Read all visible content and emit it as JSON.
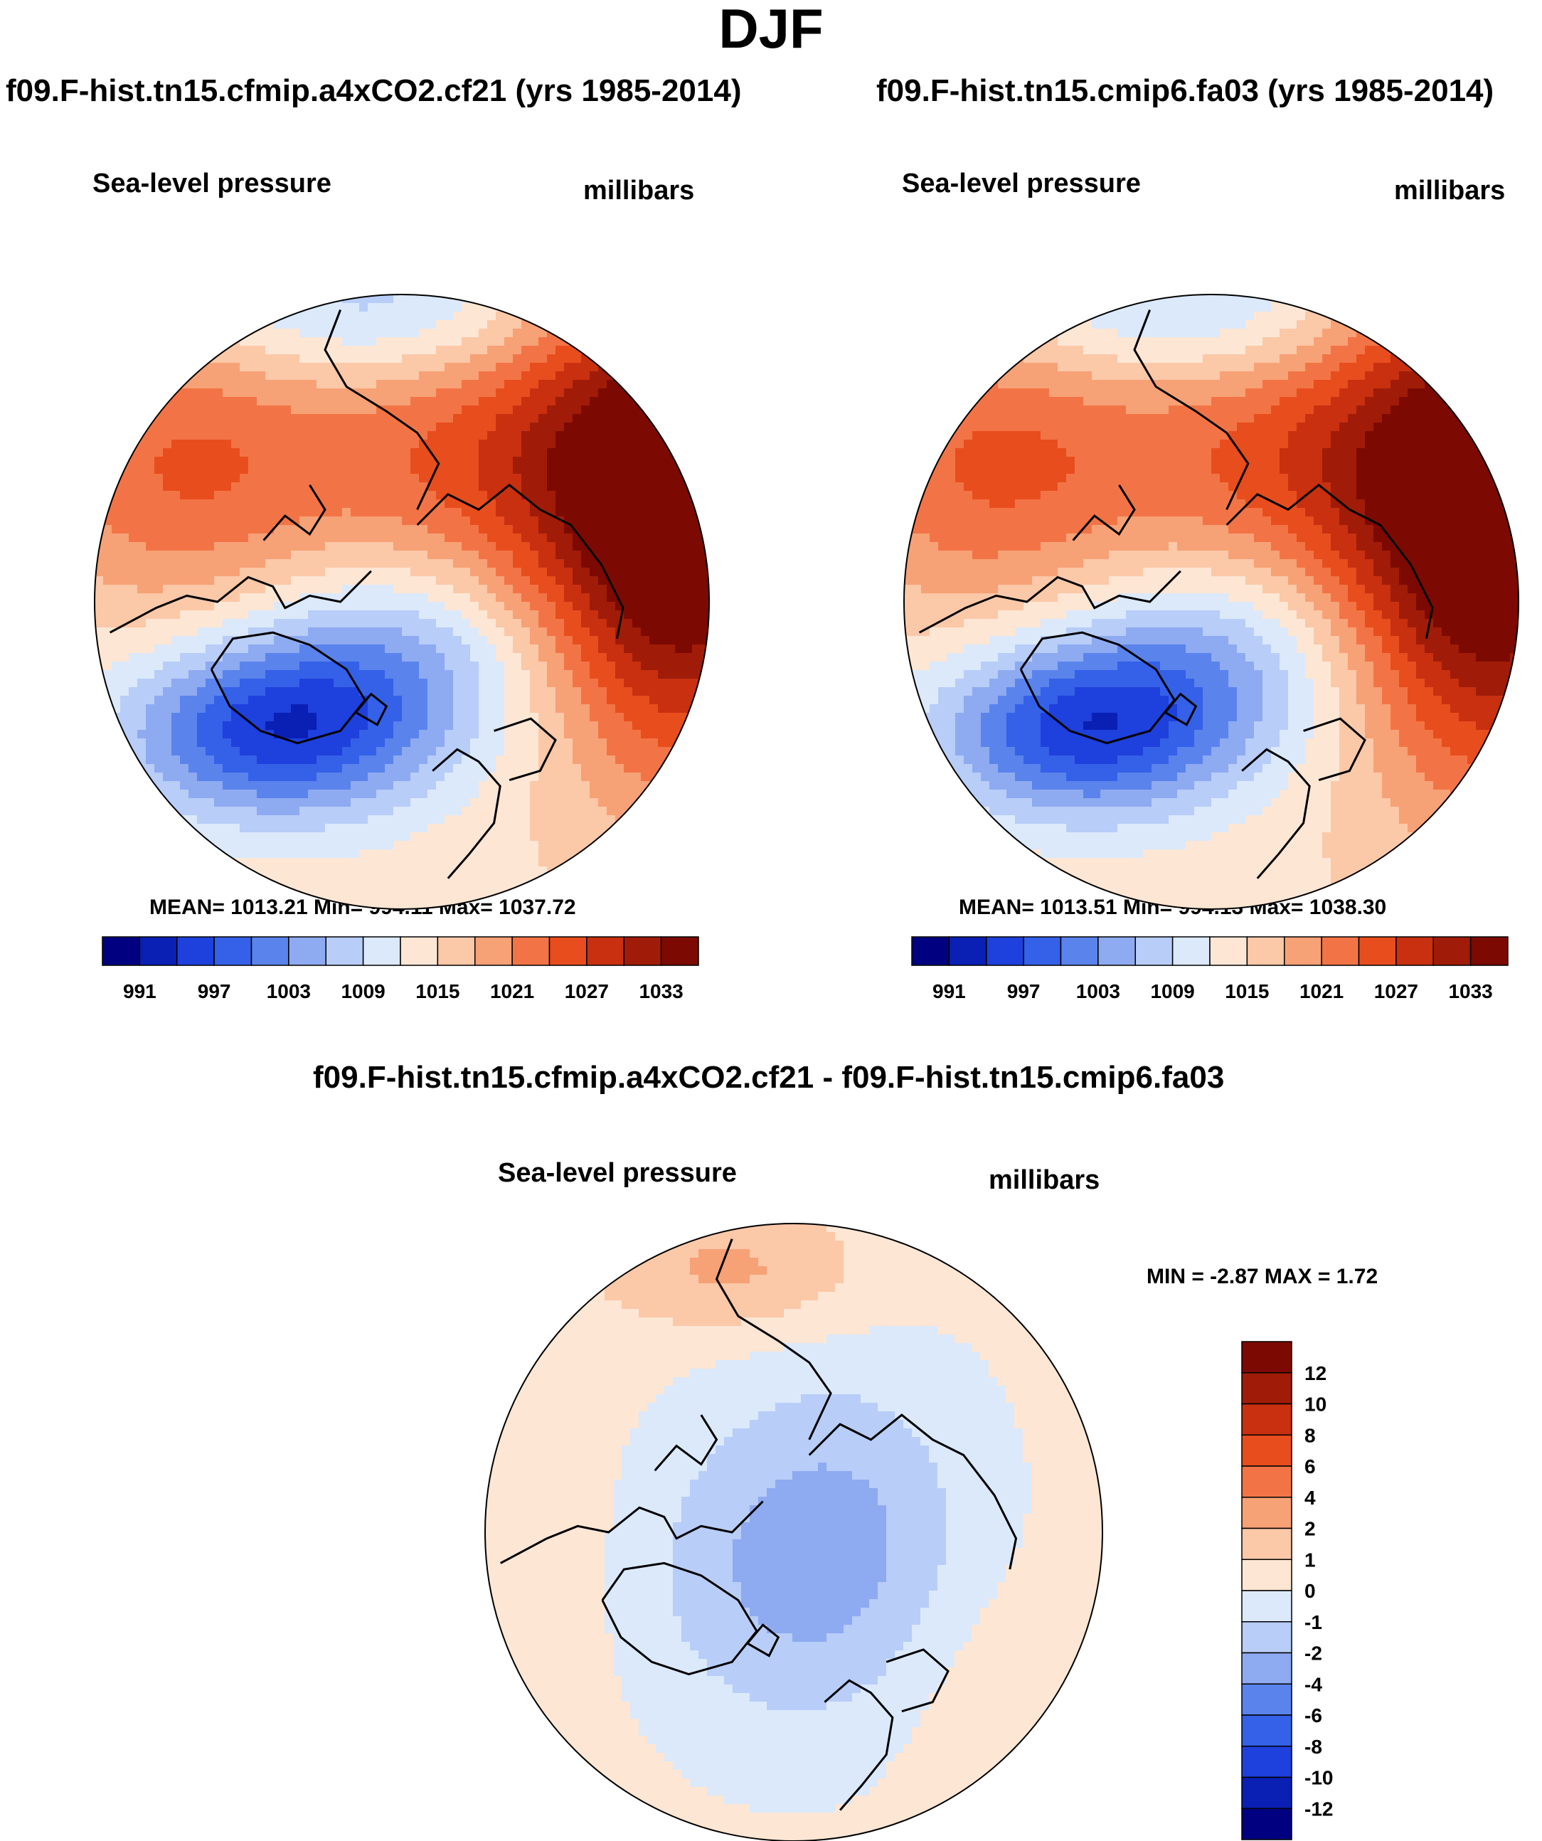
{
  "figure_title": "DJF",
  "chart_data": [
    {
      "type": "contour-map",
      "projection": "north-polar-stereographic",
      "title": "f09.F-hist.tn15.cfmip.a4xCO2.cf21 (yrs 1985-2014)",
      "variable": "Sea-level pressure",
      "units": "millibars",
      "stats": {
        "mean": 1013.21,
        "min": 994.11,
        "max": 1037.72
      },
      "stats_text": "MEAN= 1013.21   Min= 994.11   Max= 1037.72",
      "contour_levels": [
        991,
        994,
        997,
        1000,
        1003,
        1006,
        1009,
        1012,
        1015,
        1018,
        1021,
        1024,
        1027,
        1030,
        1033
      ],
      "colorbar_labels": [
        "991",
        "997",
        "1003",
        "1009",
        "1015",
        "1021",
        "1027",
        "1033"
      ],
      "colorbar_orientation": "horizontal"
    },
    {
      "type": "contour-map",
      "projection": "north-polar-stereographic",
      "title": "f09.F-hist.tn15.cmip6.fa03 (yrs 1985-2014)",
      "variable": "Sea-level pressure",
      "units": "millibars",
      "stats": {
        "mean": 1013.51,
        "min": 994.13,
        "max": 1038.3
      },
      "stats_text": "MEAN= 1013.51   Min= 994.13   Max= 1038.30",
      "contour_levels": [
        991,
        994,
        997,
        1000,
        1003,
        1006,
        1009,
        1012,
        1015,
        1018,
        1021,
        1024,
        1027,
        1030,
        1033
      ],
      "colorbar_labels": [
        "991",
        "997",
        "1003",
        "1009",
        "1015",
        "1021",
        "1027",
        "1033"
      ],
      "colorbar_orientation": "horizontal"
    },
    {
      "type": "contour-map",
      "projection": "north-polar-stereographic",
      "title": "f09.F-hist.tn15.cfmip.a4xCO2.cf21 - f09.F-hist.tn15.cmip6.fa03",
      "variable": "Sea-level pressure",
      "units": "millibars",
      "stats": {
        "min": -2.87,
        "max": 1.72
      },
      "stats_text": "MIN =  -2.87 MAX =   1.72",
      "contour_levels": [
        -12,
        -10,
        -8,
        -6,
        -4,
        -2,
        -1,
        0,
        1,
        2,
        4,
        6,
        8,
        10,
        12
      ],
      "colorbar_labels": [
        "12",
        "10",
        "8",
        "6",
        "4",
        "2",
        "1",
        "0",
        "-1",
        "-2",
        "-4",
        "-6",
        "-8",
        "-10",
        "-12"
      ],
      "colorbar_orientation": "vertical"
    }
  ],
  "colors": {
    "palette": [
      "#000080",
      "#0a1fb4",
      "#1e40dc",
      "#3560e8",
      "#5a83ec",
      "#8eaaf0",
      "#b8cdf7",
      "#dbe9fb",
      "#fde6d4",
      "#fbc8a8",
      "#f7a176",
      "#f27446",
      "#e84d1e",
      "#c83010",
      "#a01c08",
      "#7c0a02"
    ],
    "coastline": "#000000",
    "map_border": "#000000"
  }
}
